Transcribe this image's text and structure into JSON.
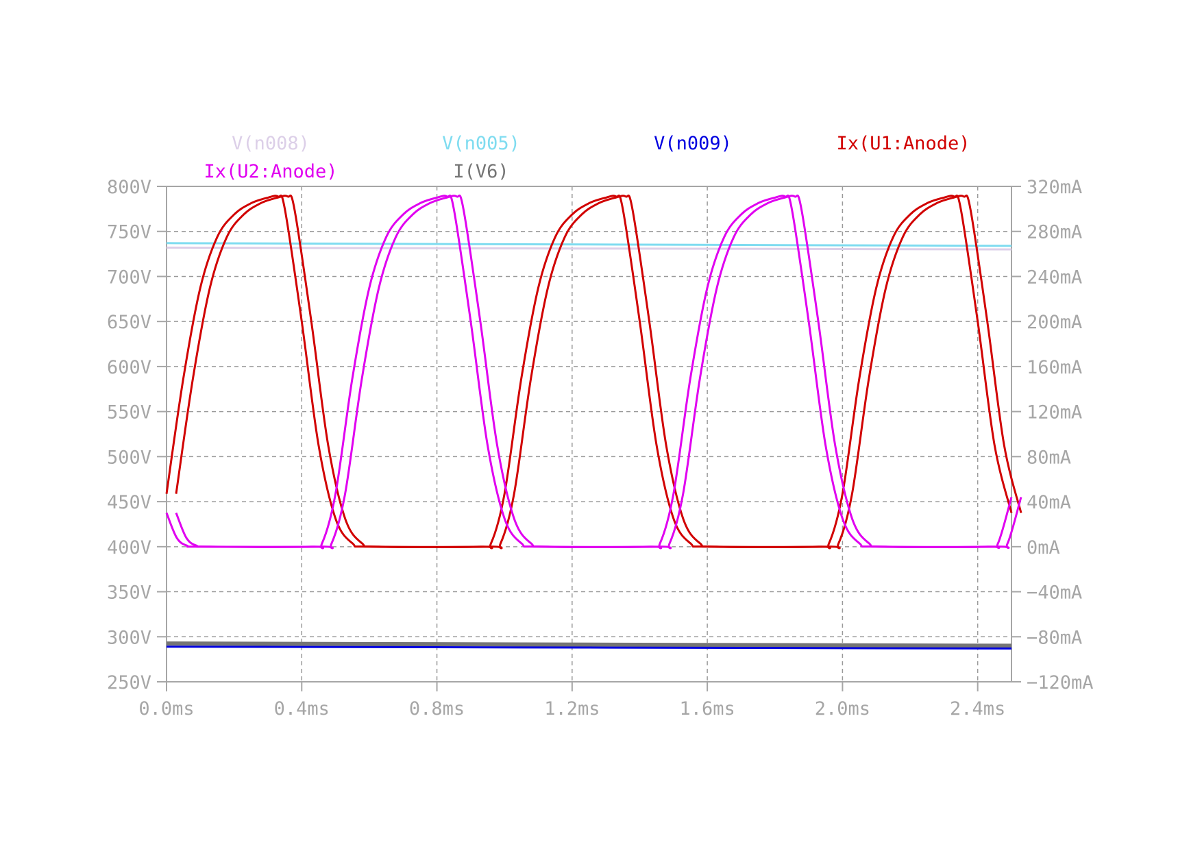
{
  "chart_data": {
    "type": "line",
    "x_axis": {
      "range_ms": [
        0,
        2.5
      ],
      "ticks_ms": [
        0,
        0.4,
        0.8,
        1.2,
        1.6,
        2.0,
        2.4
      ],
      "tick_labels": [
        "0.0ms",
        "0.4ms",
        "0.8ms",
        "1.2ms",
        "1.6ms",
        "2.0ms",
        "2.4ms"
      ]
    },
    "y_axis_left": {
      "unit": "V",
      "range": [
        250,
        800
      ],
      "ticks": [
        800,
        750,
        700,
        650,
        600,
        550,
        500,
        450,
        400,
        350,
        300,
        250
      ],
      "tick_labels": [
        "800V",
        "750V",
        "700V",
        "650V",
        "600V",
        "550V",
        "500V",
        "450V",
        "400V",
        "350V",
        "300V",
        "250V"
      ]
    },
    "y_axis_right": {
      "unit": "mA",
      "range": [
        -120,
        320
      ],
      "ticks": [
        320,
        280,
        240,
        200,
        160,
        120,
        80,
        40,
        0,
        -40,
        -80,
        -120
      ],
      "tick_labels": [
        "320mA",
        "280mA",
        "240mA",
        "200mA",
        "160mA",
        "120mA",
        "80mA",
        "40mA",
        "0mA",
        "−40mA",
        "−80mA",
        "−120mA"
      ]
    },
    "grid": true,
    "series": [
      {
        "name": "V(n008)",
        "axis": "left",
        "color": "#dccfe8",
        "x": [
          0,
          2.5
        ],
        "y": [
          732,
          730
        ]
      },
      {
        "name": "V(n005)",
        "axis": "left",
        "color": "#7fdcf0",
        "x": [
          0,
          2.5
        ],
        "y": [
          737,
          734
        ]
      },
      {
        "name": "V(n009)",
        "axis": "left",
        "color": "#0000e0",
        "x": [
          0,
          2.5
        ],
        "y": [
          289,
          287
        ]
      },
      {
        "name": "Ix(U1:Anode)",
        "axis": "right",
        "color": "#d10000",
        "x": [
          0,
          0.05,
          0.1,
          0.15,
          0.2,
          0.25,
          0.3,
          0.33,
          0.35,
          0.4,
          0.45,
          0.5,
          0.55,
          0.6,
          0.93,
          0.96,
          1.0,
          1.05,
          1.1,
          1.15,
          1.2,
          1.25,
          1.3,
          1.33,
          1.35,
          1.4,
          1.45,
          1.5,
          1.55,
          1.6,
          1.93,
          1.96,
          2.0,
          2.05,
          2.1,
          2.15,
          2.2,
          2.25,
          2.3,
          2.33,
          2.35,
          2.4,
          2.45,
          2.5
        ],
        "y": [
          47,
          150,
          230,
          275,
          295,
          305,
          310,
          311,
          300,
          200,
          90,
          25,
          3,
          0,
          0,
          3,
          47,
          150,
          230,
          275,
          295,
          305,
          310,
          311,
          300,
          200,
          90,
          25,
          3,
          0,
          0,
          3,
          47,
          150,
          230,
          275,
          295,
          305,
          310,
          311,
          300,
          200,
          90,
          30
        ]
      },
      {
        "name": "Ix(U2:Anode)",
        "axis": "right",
        "color": "#e000f0",
        "x": [
          0,
          0.03,
          0.06,
          0.1,
          0.43,
          0.46,
          0.5,
          0.55,
          0.6,
          0.65,
          0.7,
          0.75,
          0.8,
          0.83,
          0.85,
          0.9,
          0.95,
          1.0,
          1.05,
          1.1,
          1.43,
          1.46,
          1.5,
          1.55,
          1.6,
          1.65,
          1.7,
          1.75,
          1.8,
          1.83,
          1.85,
          1.9,
          1.95,
          2.0,
          2.05,
          2.1,
          2.43,
          2.46,
          2.5
        ],
        "y": [
          30,
          8,
          1,
          0,
          0,
          3,
          47,
          150,
          230,
          275,
          295,
          305,
          310,
          311,
          300,
          200,
          90,
          25,
          3,
          0,
          0,
          3,
          47,
          150,
          230,
          275,
          295,
          305,
          310,
          311,
          300,
          200,
          90,
          25,
          3,
          0,
          0,
          3,
          44
        ]
      },
      {
        "name": "I(V6)",
        "axis": "right",
        "color": "#757575",
        "x": [
          0,
          2.5
        ],
        "y": [
          -86,
          -88
        ]
      }
    ]
  }
}
